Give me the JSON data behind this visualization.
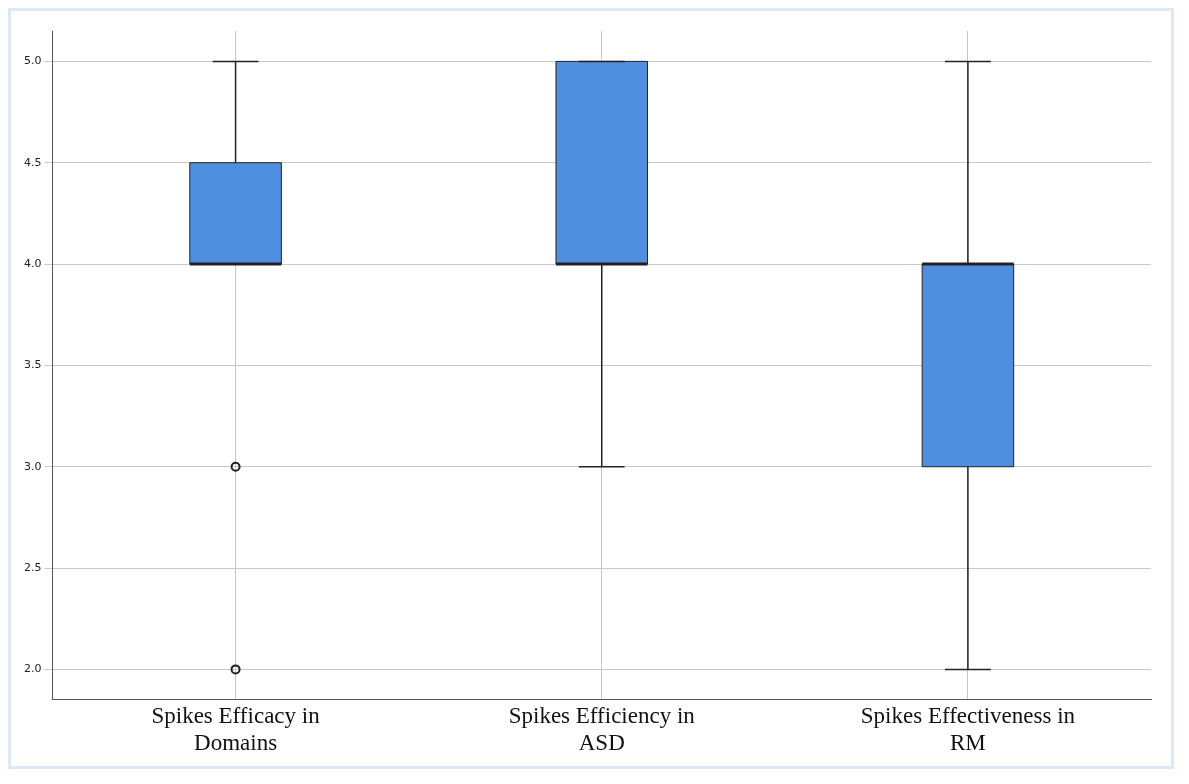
{
  "chart_data": {
    "type": "box",
    "categories": [
      "Spikes Efficacy in Domains",
      "Spikes Efficiency in ASD",
      "Spikes Effectiveness in RM"
    ],
    "boxes": [
      {
        "low": 4,
        "q1": 4,
        "median": 4,
        "q3": 4.5,
        "high": 5,
        "outliers": [
          3,
          2
        ]
      },
      {
        "low": 3,
        "q1": 4,
        "median": 4,
        "q3": 5,
        "high": 5
      },
      {
        "low": 2,
        "q1": 3,
        "median": 4,
        "q3": 4,
        "high": 5
      }
    ],
    "color": "#4f8fdf",
    "ylim": [
      1.85,
      5.15
    ],
    "yticks": [
      {
        "value": 2,
        "label": "2.0"
      },
      {
        "value": 2.5,
        "label": "2.5"
      },
      {
        "value": 3,
        "label": "3.0"
      },
      {
        "value": 3.5,
        "label": "3.5"
      },
      {
        "value": 4,
        "label": "4.0"
      },
      {
        "value": 4.5,
        "label": "4.5"
      },
      {
        "value": 5,
        "label": "5.0"
      }
    ],
    "grid": true
  }
}
